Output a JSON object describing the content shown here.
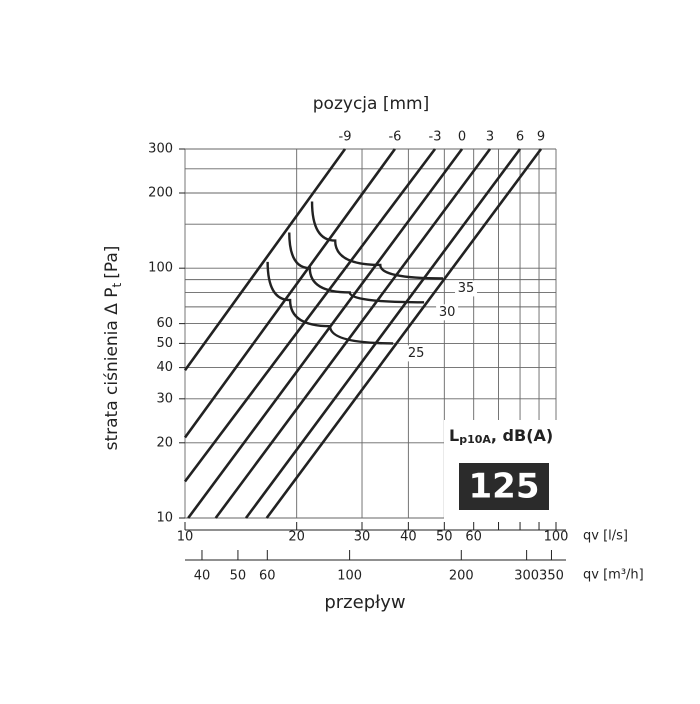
{
  "chart_data": {
    "type": "nomogram",
    "title": "pozycja [mm]",
    "x_label": "przepływ",
    "y_label": {
      "main": "strata ciśnienia Δ P",
      "sub": "t",
      "unit": "[Pa]"
    },
    "x_unit": "qv [l/s]",
    "x2_unit": "qv [m³/h]",
    "log_x": true,
    "log_y": true,
    "xlim": [
      10,
      100
    ],
    "ylim": [
      10,
      300
    ],
    "xticks": [
      10,
      20,
      30,
      40,
      50,
      60,
      100
    ],
    "xgrid": [
      10,
      20,
      30,
      40,
      50,
      60,
      70,
      80,
      90,
      100
    ],
    "yticks": [
      10,
      20,
      30,
      40,
      50,
      60,
      100,
      200,
      300
    ],
    "ygrid": [
      10,
      20,
      30,
      40,
      50,
      60,
      70,
      80,
      90,
      100,
      150,
      200,
      250,
      300
    ],
    "x2lim": [
      36,
      360
    ],
    "x2ticks": [
      40,
      50,
      60,
      100,
      200,
      300,
      350
    ],
    "color": "#222222",
    "series": [
      {
        "name": "-9",
        "x": [
          10,
          27
        ],
        "values": [
          39,
          300
        ]
      },
      {
        "name": "-6",
        "x": [
          10,
          36.8
        ],
        "values": [
          21,
          300
        ]
      },
      {
        "name": "-3",
        "x": [
          10,
          47.2
        ],
        "values": [
          14,
          300
        ]
      },
      {
        "name": "0",
        "x": [
          10.2,
          55.8
        ],
        "values": [
          10,
          300
        ]
      },
      {
        "name": "3",
        "x": [
          12.1,
          66.4
        ],
        "values": [
          10,
          300
        ]
      },
      {
        "name": "6",
        "x": [
          14.6,
          80
        ],
        "values": [
          10,
          300
        ]
      },
      {
        "name": "9",
        "x": [
          16.6,
          91.1
        ],
        "values": [
          10,
          300
        ]
      }
    ],
    "curves": [
      {
        "name": "35",
        "x": [
          22,
          25.4,
          33.6,
          49.6
        ],
        "values": [
          185,
          129,
          103,
          91
        ]
      },
      {
        "name": "30",
        "x": [
          19.1,
          21.7,
          27.8,
          44.1
        ],
        "values": [
          139,
          100,
          80,
          73
        ]
      },
      {
        "name": "25",
        "x": [
          16.7,
          19.2,
          24.6,
          36.4
        ],
        "values": [
          106,
          74.5,
          58.6,
          50
        ]
      }
    ],
    "legend": {
      "main": "L",
      "sub": "p10A",
      "unit": ", dB(A)"
    },
    "size_label": "125"
  }
}
